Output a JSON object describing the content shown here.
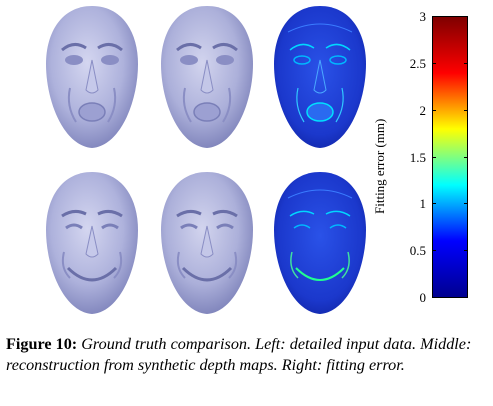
{
  "colorbar": {
    "axis_label": "Fitting error (mm)",
    "ticks": [
      "3",
      "2.5",
      "2",
      "1.5",
      "1",
      "0.5",
      "0"
    ],
    "colors": [
      "#7f0000",
      "#ff0000",
      "#ffff00",
      "#00ffff",
      "#0000ff",
      "#00008f"
    ]
  },
  "faces": {
    "render_color": "#b8bce0",
    "error_color_base": "#1f3fd6",
    "rows": [
      {
        "left": "detailed-input-row-1",
        "middle": "reconstruction-row-1",
        "right": "fitting-error-row-1"
      },
      {
        "left": "detailed-input-row-2",
        "middle": "reconstruction-row-2",
        "right": "fitting-error-row-2"
      }
    ]
  },
  "caption": {
    "figure_number": "Figure 10:",
    "text": "Ground truth comparison. Left: detailed input data. Middle: reconstruction from synthetic depth maps. Right: fitting error."
  }
}
